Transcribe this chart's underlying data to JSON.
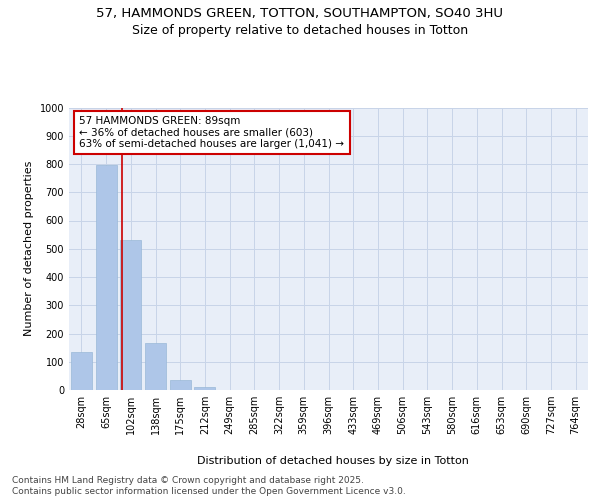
{
  "title_line1": "57, HAMMONDS GREEN, TOTTON, SOUTHAMPTON, SO40 3HU",
  "title_line2": "Size of property relative to detached houses in Totton",
  "xlabel": "Distribution of detached houses by size in Totton",
  "ylabel": "Number of detached properties",
  "bar_labels": [
    "28sqm",
    "65sqm",
    "102sqm",
    "138sqm",
    "175sqm",
    "212sqm",
    "249sqm",
    "285sqm",
    "322sqm",
    "359sqm",
    "396sqm",
    "433sqm",
    "469sqm",
    "506sqm",
    "543sqm",
    "580sqm",
    "616sqm",
    "653sqm",
    "690sqm",
    "727sqm",
    "764sqm"
  ],
  "values": [
    135,
    795,
    530,
    165,
    35,
    10,
    0,
    0,
    0,
    0,
    0,
    0,
    0,
    0,
    0,
    0,
    0,
    0,
    0,
    0,
    0
  ],
  "bar_color": "#aec6e8",
  "bar_edgecolor": "#9ab8d8",
  "vline_color": "#cc0000",
  "annotation_text": "57 HAMMONDS GREEN: 89sqm\n← 36% of detached houses are smaller (603)\n63% of semi-detached houses are larger (1,041) →",
  "box_facecolor": "white",
  "box_edgecolor": "#cc0000",
  "ylim": [
    0,
    1000
  ],
  "yticks": [
    0,
    100,
    200,
    300,
    400,
    500,
    600,
    700,
    800,
    900,
    1000
  ],
  "grid_color": "#c8d4e8",
  "background_color": "#e8eef8",
  "footer_line1": "Contains HM Land Registry data © Crown copyright and database right 2025.",
  "footer_line2": "Contains public sector information licensed under the Open Government Licence v3.0.",
  "title_fontsize": 9.5,
  "subtitle_fontsize": 9,
  "axis_label_fontsize": 8,
  "tick_fontsize": 7,
  "annotation_fontsize": 7.5,
  "footer_fontsize": 6.5
}
